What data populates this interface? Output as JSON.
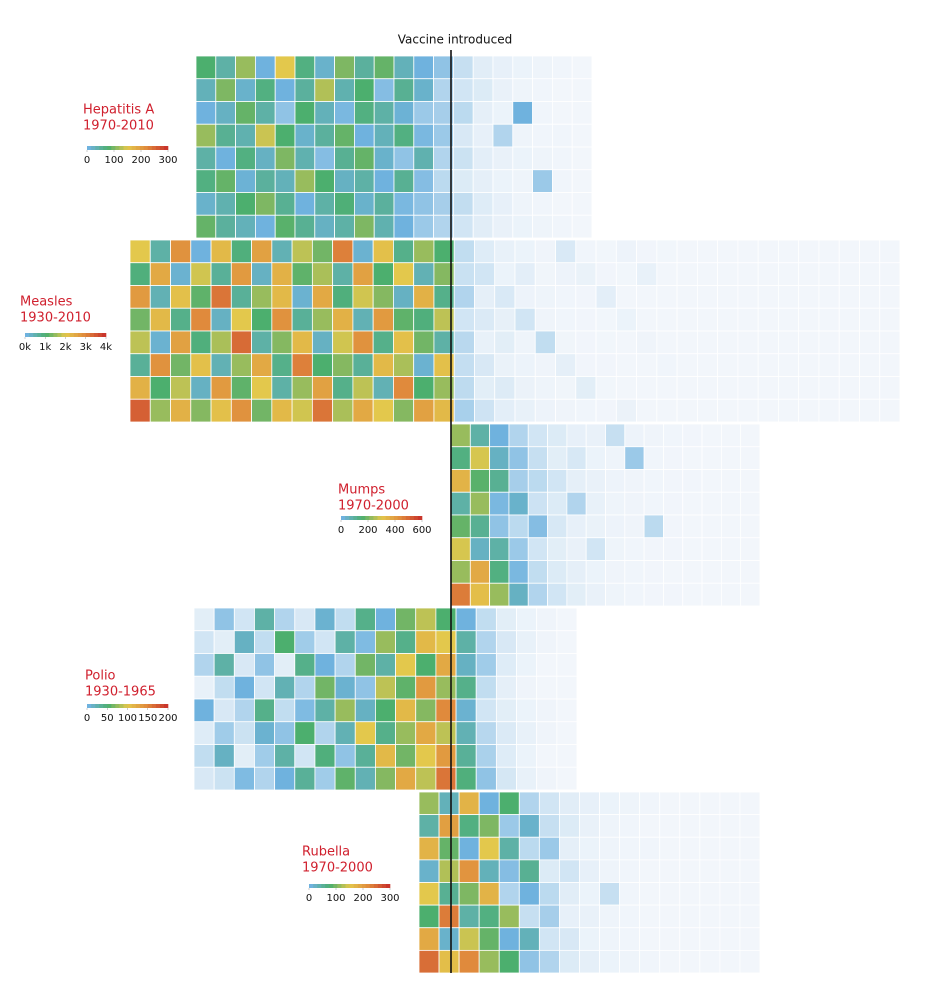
{
  "annotation": "Vaccine introduced",
  "chart_data": [
    {
      "type": "heatmap",
      "title": "Hepatitis A",
      "subtitle": "1970-2010",
      "colors": [
        "#f2f6fb",
        "#6fb2de",
        "#4caf6e",
        "#e3c84c",
        "#e08a3c",
        "#c9362c"
      ],
      "zlim": [
        0,
        300
      ],
      "zticks": [
        0,
        100,
        200,
        300
      ],
      "values": [
        [
          120,
          90,
          150,
          60,
          180,
          110,
          70,
          140,
          95,
          130,
          80,
          60,
          45,
          20,
          8,
          5,
          3,
          2,
          1,
          0
        ],
        [
          80,
          140,
          70,
          110,
          60,
          95,
          160,
          85,
          120,
          50,
          100,
          70,
          30,
          15,
          10,
          4,
          2,
          1,
          0,
          0
        ],
        [
          60,
          75,
          130,
          90,
          45,
          120,
          80,
          55,
          110,
          90,
          65,
          40,
          35,
          25,
          6,
          3,
          60,
          1,
          0,
          0
        ],
        [
          150,
          100,
          85,
          170,
          120,
          70,
          95,
          130,
          60,
          80,
          110,
          55,
          40,
          12,
          5,
          30,
          2,
          1,
          1,
          0
        ],
        [
          90,
          60,
          110,
          75,
          140,
          85,
          50,
          100,
          130,
          70,
          45,
          85,
          30,
          18,
          7,
          4,
          3,
          2,
          1,
          0
        ],
        [
          110,
          130,
          65,
          95,
          80,
          150,
          120,
          75,
          90,
          60,
          100,
          50,
          25,
          10,
          6,
          3,
          2,
          40,
          1,
          0
        ],
        [
          70,
          85,
          120,
          140,
          100,
          60,
          90,
          115,
          70,
          95,
          55,
          45,
          35,
          22,
          9,
          5,
          2,
          1,
          0,
          0
        ],
        [
          130,
          95,
          80,
          60,
          125,
          100,
          75,
          90,
          140,
          85,
          60,
          40,
          30,
          15,
          8,
          4,
          3,
          2,
          1,
          0
        ]
      ]
    },
    {
      "type": "heatmap",
      "title": "Measles",
      "subtitle": "1930-2010",
      "colors": [
        "#f2f6fb",
        "#6fb2de",
        "#4caf6e",
        "#e3c84c",
        "#e08a3c",
        "#c9362c"
      ],
      "zlim": [
        0,
        4000
      ],
      "zticks": [
        {
          "value": 0,
          "label": "0k"
        },
        {
          "value": 1000,
          "label": "1k"
        },
        {
          "value": 2000,
          "label": "2k"
        },
        {
          "value": 3000,
          "label": "3k"
        },
        {
          "value": 4000,
          "label": "4k"
        }
      ],
      "values": [
        [
          2400,
          1200,
          3100,
          800,
          2600,
          1500,
          2900,
          1100,
          2200,
          1800,
          3300,
          900,
          2500,
          1400,
          2000,
          1600,
          300,
          120,
          60,
          40,
          20,
          150,
          10,
          5,
          30,
          8,
          4,
          2,
          1,
          0,
          0,
          0,
          0,
          0,
          0,
          0,
          0,
          0
        ],
        [
          1500,
          2800,
          900,
          2300,
          1300,
          3000,
          1000,
          2700,
          1700,
          2100,
          1200,
          2900,
          1600,
          2400,
          1100,
          1900,
          250,
          200,
          40,
          90,
          15,
          30,
          50,
          8,
          4,
          60,
          2,
          1,
          0,
          0,
          0,
          0,
          0,
          0,
          0,
          0,
          0,
          0
        ],
        [
          3000,
          1100,
          2500,
          1700,
          3400,
          1300,
          2000,
          2600,
          900,
          2800,
          1500,
          2300,
          1900,
          1000,
          2700,
          1400,
          400,
          80,
          150,
          30,
          25,
          10,
          6,
          90,
          3,
          2,
          1,
          1,
          0,
          0,
          0,
          0,
          0,
          0,
          0,
          0,
          0,
          0
        ],
        [
          1800,
          2600,
          1400,
          3200,
          1000,
          2400,
          1600,
          3100,
          1300,
          2000,
          2700,
          1100,
          3000,
          1700,
          1500,
          2200,
          200,
          140,
          70,
          200,
          20,
          12,
          8,
          5,
          40,
          3,
          2,
          1,
          0,
          0,
          0,
          0,
          0,
          0,
          0,
          0,
          0,
          0
        ],
        [
          2200,
          900,
          2900,
          1500,
          2100,
          3500,
          1200,
          1900,
          2600,
          1000,
          2300,
          3100,
          1400,
          2500,
          1800,
          1200,
          350,
          60,
          100,
          25,
          300,
          15,
          7,
          4,
          2,
          20,
          1,
          0,
          0,
          0,
          0,
          0,
          0,
          0,
          0,
          0,
          0,
          0
        ],
        [
          1300,
          3100,
          1800,
          2500,
          1100,
          2000,
          2800,
          1400,
          3300,
          1600,
          1900,
          1300,
          2600,
          2100,
          900,
          2500,
          280,
          160,
          50,
          35,
          18,
          80,
          9,
          6,
          3,
          2,
          10,
          1,
          0,
          0,
          0,
          0,
          0,
          0,
          0,
          0,
          0,
          0
        ],
        [
          2700,
          1600,
          2200,
          1000,
          3000,
          1700,
          2400,
          1200,
          2000,
          2900,
          1400,
          2200,
          1100,
          3200,
          1600,
          2000,
          320,
          100,
          130,
          45,
          22,
          14,
          100,
          5,
          3,
          2,
          1,
          1,
          0,
          0,
          0,
          0,
          0,
          0,
          0,
          0,
          0,
          0
        ],
        [
          3600,
          2000,
          2700,
          1900,
          2500,
          3100,
          1800,
          2600,
          2300,
          3400,
          2100,
          2800,
          2400,
          1900,
          2900,
          2600,
          450,
          220,
          90,
          60,
          30,
          18,
          10,
          7,
          45,
          3,
          2,
          1,
          0,
          0,
          0,
          0,
          0,
          0,
          0,
          0,
          0,
          0
        ]
      ]
    },
    {
      "type": "heatmap",
      "title": "Mumps",
      "subtitle": "1970-2000",
      "colors": [
        "#f2f6fb",
        "#6fb2de",
        "#4caf6e",
        "#e3c84c",
        "#e08a3c",
        "#c9362c"
      ],
      "zlim": [
        0,
        600
      ],
      "zticks": [
        0,
        200,
        400,
        600
      ],
      "values": [
        [
          300,
          180,
          120,
          60,
          30,
          20,
          10,
          8,
          40,
          5,
          3,
          2,
          1,
          0,
          0,
          0
        ],
        [
          220,
          350,
          150,
          90,
          40,
          15,
          25,
          6,
          4,
          80,
          2,
          1,
          0,
          0,
          0,
          0
        ],
        [
          400,
          250,
          200,
          70,
          50,
          30,
          12,
          8,
          5,
          3,
          2,
          1,
          1,
          0,
          0,
          0
        ],
        [
          180,
          300,
          110,
          140,
          35,
          20,
          60,
          9,
          4,
          3,
          2,
          1,
          0,
          0,
          0,
          0
        ],
        [
          260,
          200,
          90,
          50,
          100,
          25,
          10,
          7,
          5,
          3,
          50,
          1,
          0,
          0,
          0,
          0
        ],
        [
          350,
          150,
          180,
          80,
          30,
          15,
          8,
          30,
          4,
          2,
          1,
          1,
          0,
          0,
          0,
          0
        ],
        [
          300,
          420,
          220,
          110,
          45,
          20,
          12,
          6,
          3,
          2,
          1,
          0,
          0,
          0,
          0,
          0
        ],
        [
          500,
          380,
          300,
          150,
          60,
          30,
          15,
          8,
          4,
          2,
          1,
          1,
          0,
          0,
          0,
          0
        ]
      ]
    },
    {
      "type": "heatmap",
      "title": "Polio",
      "subtitle": "1930-1965",
      "colors": [
        "#f2f6fb",
        "#6fb2de",
        "#4caf6e",
        "#e3c84c",
        "#e08a3c",
        "#c9362c"
      ],
      "zlim": [
        0,
        200
      ],
      "zticks": [
        0,
        50,
        100,
        150,
        200
      ],
      "values": [
        [
          5,
          30,
          10,
          60,
          20,
          8,
          45,
          15,
          70,
          40,
          90,
          110,
          80,
          40,
          15,
          5,
          2,
          1,
          0
        ],
        [
          10,
          5,
          50,
          15,
          80,
          25,
          10,
          60,
          35,
          100,
          70,
          130,
          120,
          60,
          20,
          8,
          3,
          1,
          0
        ],
        [
          20,
          60,
          8,
          30,
          5,
          70,
          40,
          20,
          90,
          60,
          120,
          80,
          140,
          50,
          25,
          6,
          2,
          0,
          0
        ],
        [
          3,
          15,
          40,
          10,
          55,
          20,
          90,
          45,
          30,
          110,
          85,
          150,
          100,
          70,
          15,
          4,
          1,
          0,
          0
        ],
        [
          40,
          8,
          20,
          70,
          15,
          35,
          60,
          100,
          50,
          80,
          130,
          95,
          160,
          45,
          10,
          5,
          2,
          1,
          0
        ],
        [
          6,
          25,
          12,
          45,
          30,
          80,
          20,
          55,
          120,
          70,
          100,
          140,
          110,
          55,
          18,
          7,
          3,
          1,
          0
        ],
        [
          15,
          50,
          5,
          25,
          60,
          10,
          75,
          30,
          65,
          130,
          90,
          120,
          150,
          65,
          22,
          6,
          2,
          0,
          0
        ],
        [
          8,
          12,
          35,
          20,
          40,
          65,
          25,
          85,
          55,
          95,
          140,
          110,
          170,
          75,
          30,
          9,
          3,
          1,
          0
        ]
      ]
    },
    {
      "type": "heatmap",
      "title": "Rubella",
      "subtitle": "1970-2000",
      "colors": [
        "#f2f6fb",
        "#6fb2de",
        "#4caf6e",
        "#e3c84c",
        "#e08a3c",
        "#c9362c"
      ],
      "zlim": [
        0,
        300
      ],
      "zticks": [
        0,
        100,
        200,
        300
      ],
      "values": [
        [
          150,
          80,
          200,
          60,
          120,
          30,
          15,
          8,
          5,
          3,
          2,
          1,
          0,
          0,
          0,
          0,
          0
        ],
        [
          90,
          220,
          110,
          140,
          40,
          70,
          20,
          10,
          4,
          2,
          1,
          0,
          0,
          0,
          0,
          0,
          0
        ],
        [
          200,
          130,
          60,
          180,
          90,
          25,
          40,
          6,
          3,
          2,
          1,
          1,
          0,
          0,
          0,
          0,
          0
        ],
        [
          70,
          160,
          230,
          80,
          50,
          100,
          10,
          15,
          5,
          2,
          1,
          0,
          0,
          0,
          0,
          0,
          0
        ],
        [
          180,
          100,
          140,
          200,
          30,
          60,
          25,
          8,
          3,
          20,
          1,
          0,
          0,
          0,
          0,
          0,
          0
        ],
        [
          120,
          250,
          90,
          110,
          150,
          20,
          35,
          5,
          4,
          2,
          1,
          0,
          0,
          0,
          0,
          0,
          0
        ],
        [
          210,
          70,
          170,
          130,
          60,
          80,
          15,
          12,
          3,
          2,
          1,
          0,
          0,
          0,
          0,
          0,
          0
        ],
        [
          260,
          190,
          240,
          150,
          120,
          45,
          30,
          10,
          6,
          3,
          2,
          1,
          0,
          0,
          0,
          0,
          0
        ]
      ]
    }
  ]
}
